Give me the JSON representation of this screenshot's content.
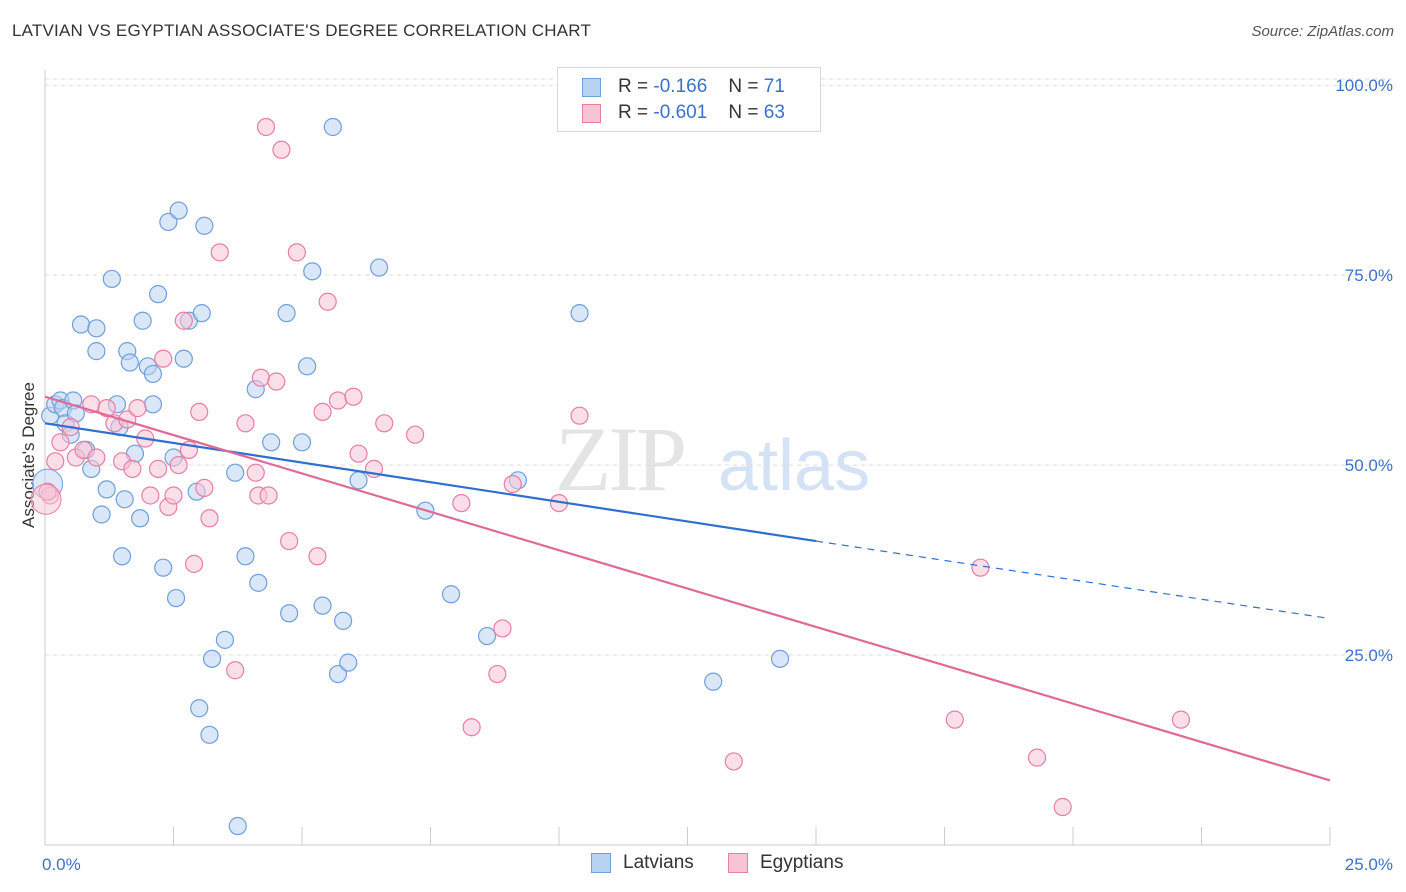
{
  "title": "LATVIAN VS EGYPTIAN ASSOCIATE'S DEGREE CORRELATION CHART",
  "source": "Source: ZipAtlas.com",
  "watermark": {
    "zip": "ZIP",
    "atlas": "atlas"
  },
  "legend": {
    "rows": [
      {
        "r_label": "R =",
        "r_value": "-0.166",
        "n_label": "N =",
        "n_value": "71",
        "color": "#6f9fdc",
        "fill": "#b9d3f3"
      },
      {
        "r_label": "R =",
        "r_value": "-0.601",
        "n_label": "N =",
        "n_value": "63",
        "color": "#e97da2",
        "fill": "#f7c4d6"
      }
    ]
  },
  "bottom_legend": [
    {
      "label": "Latvians",
      "color": "#6f9fdc",
      "fill": "#b9d3f3"
    },
    {
      "label": "Egyptians",
      "color": "#e97da2",
      "fill": "#f7c4d6"
    }
  ],
  "chart_data": {
    "type": "scatter",
    "title": "LATVIAN VS EGYPTIAN ASSOCIATE'S DEGREE CORRELATION CHART",
    "ylabel": "Associate's Degree",
    "xlabel": "",
    "xlim": [
      0,
      25
    ],
    "ylim": [
      0,
      102
    ],
    "x_tick_labels": [
      "0.0%",
      "25.0%"
    ],
    "y_ticks": [
      25,
      50,
      75,
      100
    ],
    "y_tick_labels": [
      "25.0%",
      "50.0%",
      "75.0%",
      "100.0%"
    ],
    "grid": true,
    "legend_position": "top-center",
    "series": [
      {
        "name": "Latvians",
        "color": "#4a86d8",
        "point_fill": "#b9d3f3",
        "point_stroke": "#6f9fdc",
        "trend": {
          "x0": 0,
          "y0": 55.5,
          "x1": 15.0,
          "y1": 40.0,
          "dash_x1": 25,
          "dash_y1": 29.8,
          "line_color": "#2f6fd0"
        },
        "points": [
          [
            0.1,
            56.5
          ],
          [
            0.2,
            58.0
          ],
          [
            0.3,
            58.5
          ],
          [
            0.35,
            57.5
          ],
          [
            0.4,
            55.5
          ],
          [
            0.5,
            54.0
          ],
          [
            0.55,
            58.5
          ],
          [
            0.6,
            56.8
          ],
          [
            0.7,
            68.5
          ],
          [
            0.8,
            52.0
          ],
          [
            0.9,
            49.5
          ],
          [
            1.0,
            68.0
          ],
          [
            1.0,
            65.0
          ],
          [
            1.1,
            43.5
          ],
          [
            1.2,
            46.8
          ],
          [
            1.3,
            74.5
          ],
          [
            1.4,
            58.0
          ],
          [
            1.45,
            55.0
          ],
          [
            1.5,
            38.0
          ],
          [
            1.55,
            45.5
          ],
          [
            1.6,
            65.0
          ],
          [
            1.65,
            63.5
          ],
          [
            1.75,
            51.5
          ],
          [
            1.85,
            43.0
          ],
          [
            1.9,
            69.0
          ],
          [
            2.0,
            63.0
          ],
          [
            2.1,
            58.0
          ],
          [
            2.1,
            62.0
          ],
          [
            2.2,
            72.5
          ],
          [
            2.3,
            36.5
          ],
          [
            2.4,
            82.0
          ],
          [
            2.5,
            51.0
          ],
          [
            2.55,
            32.5
          ],
          [
            2.6,
            83.5
          ],
          [
            2.7,
            64.0
          ],
          [
            2.8,
            69.0
          ],
          [
            2.95,
            46.5
          ],
          [
            3.0,
            18.0
          ],
          [
            3.05,
            70.0
          ],
          [
            3.1,
            81.5
          ],
          [
            3.2,
            14.5
          ],
          [
            3.25,
            24.5
          ],
          [
            3.5,
            27.0
          ],
          [
            3.7,
            49.0
          ],
          [
            3.75,
            2.5
          ],
          [
            3.9,
            38.0
          ],
          [
            4.1,
            60.0
          ],
          [
            4.15,
            34.5
          ],
          [
            4.4,
            53.0
          ],
          [
            4.7,
            70.0
          ],
          [
            4.75,
            30.5
          ],
          [
            5.0,
            53.0
          ],
          [
            5.1,
            63.0
          ],
          [
            5.2,
            75.5
          ],
          [
            5.4,
            31.5
          ],
          [
            5.6,
            94.5
          ],
          [
            5.7,
            22.5
          ],
          [
            5.8,
            29.5
          ],
          [
            5.9,
            24.0
          ],
          [
            6.1,
            48.0
          ],
          [
            6.5,
            76.0
          ],
          [
            7.4,
            44.0
          ],
          [
            7.9,
            33.0
          ],
          [
            8.6,
            27.5
          ],
          [
            9.2,
            48.0
          ],
          [
            10.4,
            70.0
          ],
          [
            13.0,
            21.5
          ],
          [
            14.3,
            24.5
          ]
        ]
      },
      {
        "name": "Egyptians",
        "color": "#e06a95",
        "point_fill": "#f7c4d6",
        "point_stroke": "#e97da2",
        "trend": {
          "x0": 0,
          "y0": 59.0,
          "x1": 25.0,
          "y1": 8.5,
          "line_color": "#e06a95"
        },
        "points": [
          [
            0.1,
            46.0
          ],
          [
            0.2,
            50.5
          ],
          [
            0.3,
            53.0
          ],
          [
            0.5,
            55.0
          ],
          [
            0.6,
            51.0
          ],
          [
            0.75,
            52.0
          ],
          [
            0.9,
            58.0
          ],
          [
            1.0,
            51.0
          ],
          [
            1.2,
            57.5
          ],
          [
            1.35,
            55.5
          ],
          [
            1.5,
            50.5
          ],
          [
            1.6,
            56.0
          ],
          [
            1.7,
            49.5
          ],
          [
            1.8,
            57.5
          ],
          [
            1.95,
            53.5
          ],
          [
            2.05,
            46.0
          ],
          [
            2.2,
            49.5
          ],
          [
            2.3,
            64.0
          ],
          [
            2.4,
            44.5
          ],
          [
            2.5,
            46.0
          ],
          [
            2.6,
            50.0
          ],
          [
            2.7,
            69.0
          ],
          [
            2.8,
            52.0
          ],
          [
            2.9,
            37.0
          ],
          [
            3.0,
            57.0
          ],
          [
            3.1,
            47.0
          ],
          [
            3.2,
            43.0
          ],
          [
            3.4,
            78.0
          ],
          [
            3.7,
            23.0
          ],
          [
            3.9,
            55.5
          ],
          [
            4.1,
            49.0
          ],
          [
            4.15,
            46.0
          ],
          [
            4.2,
            61.5
          ],
          [
            4.35,
            46.0
          ],
          [
            4.5,
            61.0
          ],
          [
            4.6,
            91.5
          ],
          [
            4.75,
            40.0
          ],
          [
            4.9,
            78.0
          ],
          [
            5.3,
            38.0
          ],
          [
            5.4,
            57.0
          ],
          [
            5.5,
            71.5
          ],
          [
            5.7,
            58.5
          ],
          [
            6.0,
            59.0
          ],
          [
            6.1,
            51.5
          ],
          [
            6.4,
            49.5
          ],
          [
            6.6,
            55.5
          ],
          [
            7.2,
            54.0
          ],
          [
            8.1,
            45.0
          ],
          [
            8.3,
            15.5
          ],
          [
            8.8,
            22.5
          ],
          [
            8.9,
            28.5
          ],
          [
            9.1,
            47.5
          ],
          [
            10.0,
            45.0
          ],
          [
            10.4,
            56.5
          ],
          [
            13.4,
            11.0
          ],
          [
            17.7,
            16.5
          ],
          [
            18.2,
            36.5
          ],
          [
            19.3,
            11.5
          ],
          [
            19.8,
            5.0
          ],
          [
            22.1,
            16.5
          ],
          [
            4.3,
            94.5
          ],
          [
            0.05,
            46.5
          ]
        ]
      }
    ]
  }
}
